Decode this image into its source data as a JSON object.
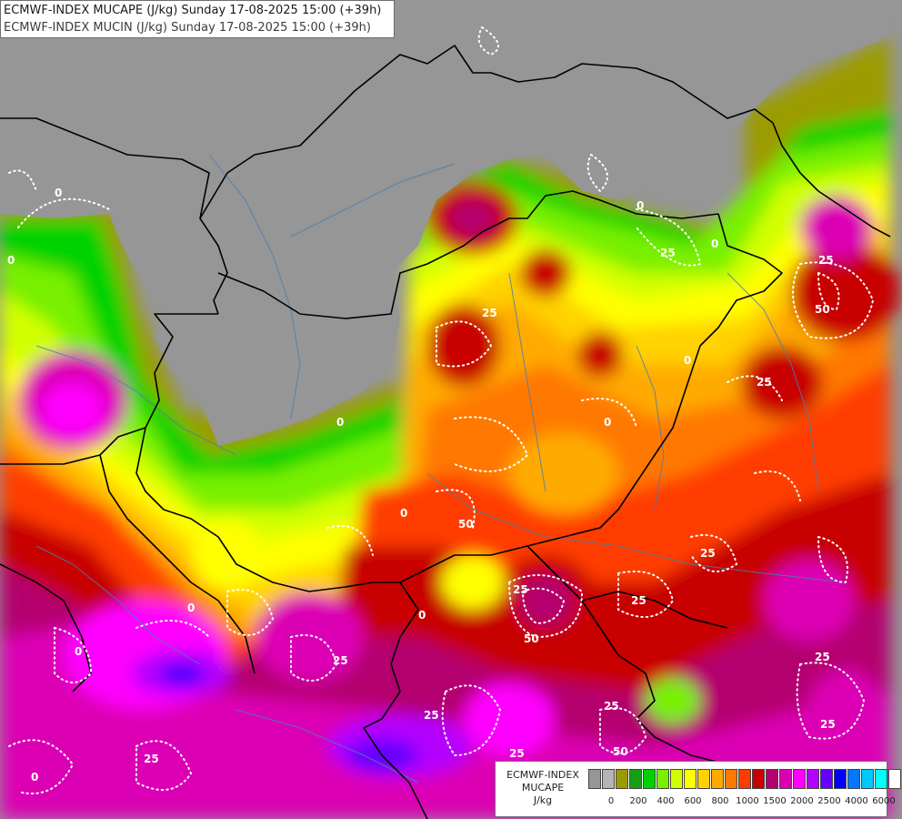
{
  "header": {
    "line1": "ECMWF-INDEX MUCAPE (J/kg) Sunday 17-08-2025 15:00 (+39h)",
    "line2": "ECMWF-INDEX MUCIN (J/kg) Sunday 17-08-2025 15:00 (+39h)"
  },
  "legend": {
    "title1": "ECMWF-INDEX",
    "title2": "MUCAPE",
    "unit": "J/kg",
    "colors": [
      "#969696",
      "#b4b4b4",
      "#9b9b00",
      "#14a014",
      "#00d200",
      "#78f000",
      "#d2ff00",
      "#ffff00",
      "#ffd200",
      "#ffaa00",
      "#ff7800",
      "#ff3c00",
      "#c80000",
      "#b4006e",
      "#dc00b4",
      "#ff00ff",
      "#b400ff",
      "#6400ff",
      "#0000ff",
      "#0078ff",
      "#00c8ff",
      "#00ffff",
      "#ffffff"
    ],
    "ticks": [
      "0",
      "200",
      "400",
      "600",
      "800",
      "1000",
      "1500",
      "2000",
      "2500",
      "4000",
      "6000"
    ]
  },
  "map": {
    "cin_labels": [
      "0",
      "0",
      "0",
      "0",
      "0",
      "0",
      "0",
      "0",
      "0",
      "0",
      "0",
      "0",
      "25",
      "25",
      "25",
      "25",
      "25",
      "25",
      "25",
      "25",
      "25",
      "25",
      "25",
      "25",
      "25",
      "25",
      "50",
      "50",
      "50",
      "50"
    ]
  }
}
